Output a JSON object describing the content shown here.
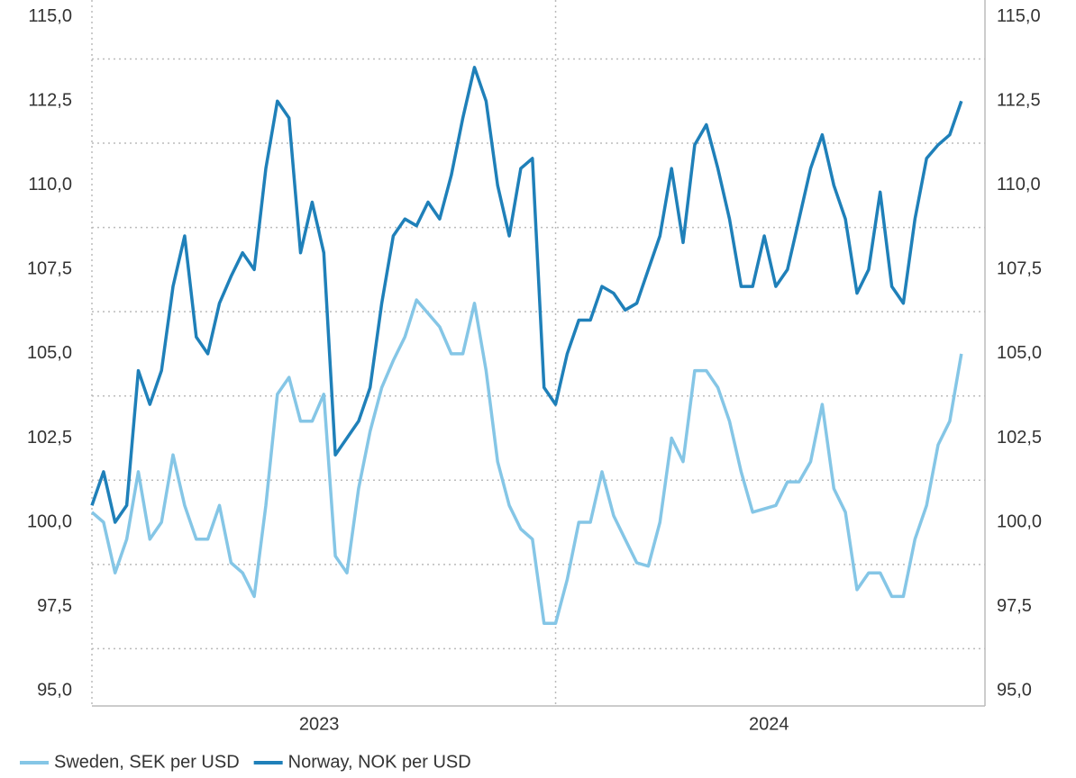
{
  "chart_data": {
    "type": "line",
    "xlim": [
      2023,
      2024.926
    ],
    "xticks": [
      2023,
      2024
    ],
    "xlabels": [
      {
        "value": 2023.49,
        "label": "2023"
      },
      {
        "value": 2024.46,
        "label": "2024"
      }
    ],
    "ylim": [
      94.55,
      115.5
    ],
    "yticks": [
      {
        "value": 95,
        "label": "95,0"
      },
      {
        "value": 97.5,
        "label": "97,5"
      },
      {
        "value": 100,
        "label": "100,0"
      },
      {
        "value": 102.5,
        "label": "102,5"
      },
      {
        "value": 105,
        "label": "105,0"
      },
      {
        "value": 107.5,
        "label": "107,5"
      },
      {
        "value": 110,
        "label": "110,0"
      },
      {
        "value": 112.5,
        "label": "112,5"
      },
      {
        "value": 115,
        "label": "115,0"
      }
    ],
    "y2lim": [
      94.55,
      115.5
    ],
    "y2ticks": [
      {
        "value": 95,
        "label": "95,0"
      },
      {
        "value": 97.5,
        "label": "97,5"
      },
      {
        "value": 100,
        "label": "100,0"
      },
      {
        "value": 102.5,
        "label": "102,5"
      },
      {
        "value": 105,
        "label": "105,0"
      },
      {
        "value": 107.5,
        "label": "107,5"
      },
      {
        "value": 110,
        "label": "110,0"
      },
      {
        "value": 112.5,
        "label": "112,5"
      },
      {
        "value": 115,
        "label": "115,0"
      }
    ],
    "grid": true,
    "legend": "bottom",
    "x": [
      2023,
      2023.025,
      2023.05,
      2023.075,
      2023.1,
      2023.125,
      2023.15,
      2023.175,
      2023.2,
      2023.225,
      2023.25,
      2023.275,
      2023.3,
      2023.325,
      2023.35,
      2023.375,
      2023.4,
      2023.425,
      2023.45,
      2023.475,
      2023.5,
      2023.525,
      2023.55,
      2023.575,
      2023.6,
      2023.625,
      2023.65,
      2023.675,
      2023.7,
      2023.725,
      2023.75,
      2023.775,
      2023.8,
      2023.825,
      2023.85,
      2023.875,
      2023.9,
      2023.925,
      2023.95,
      2023.975,
      2024,
      2024.025,
      2024.05,
      2024.075,
      2024.1,
      2024.125,
      2024.15,
      2024.175,
      2024.2,
      2024.225,
      2024.25,
      2024.275,
      2024.3,
      2024.325,
      2024.35,
      2024.375,
      2024.4,
      2024.425,
      2024.45,
      2024.475,
      2024.5,
      2024.525,
      2024.55,
      2024.575,
      2024.6,
      2024.625,
      2024.65,
      2024.675,
      2024.7,
      2024.725,
      2024.75,
      2024.775,
      2024.8,
      2024.825,
      2024.85,
      2024.875
    ],
    "series": [
      {
        "name": "Sweden, SEK per USD",
        "color": "#85c6e6",
        "values": [
          100.3,
          100,
          98.5,
          99.5,
          101.5,
          99.5,
          100,
          102,
          100.5,
          99.5,
          99.5,
          100.5,
          98.8,
          98.5,
          97.8,
          100.5,
          103.8,
          104.3,
          103,
          103,
          103.8,
          99,
          98.5,
          101,
          102.7,
          104,
          104.8,
          105.5,
          106.6,
          106.2,
          105.8,
          105,
          105,
          106.5,
          104.5,
          101.8,
          100.5,
          99.8,
          99.5,
          97,
          97,
          98.3,
          100,
          100,
          101.5,
          100.2,
          99.5,
          98.8,
          98.7,
          100,
          102.5,
          101.8,
          104.5,
          104.5,
          104,
          103,
          101.5,
          100.3,
          100.4,
          100.5,
          101.2,
          101.2,
          101.8,
          103.5,
          101,
          100.3,
          98,
          98.5,
          98.5,
          97.8,
          97.8,
          99.5,
          100.5,
          102.3,
          103,
          105
        ]
      },
      {
        "name": "Norway, NOK per USD",
        "color": "#1f80b9",
        "values": [
          100.5,
          101.5,
          100,
          100.5,
          104.5,
          103.5,
          104.5,
          107,
          108.5,
          105.5,
          105,
          106.5,
          107.3,
          108,
          107.5,
          110.5,
          112.5,
          112,
          108,
          109.5,
          108,
          102,
          102.5,
          103,
          104,
          106.5,
          108.5,
          109,
          108.8,
          109.5,
          109,
          110.3,
          112,
          113.5,
          112.5,
          110,
          108.5,
          110.5,
          110.8,
          104,
          103.5,
          105,
          106,
          106,
          107,
          106.8,
          106.3,
          106.5,
          107.5,
          108.5,
          110.5,
          108.3,
          111.2,
          111.8,
          110.5,
          109,
          107,
          107,
          108.5,
          107,
          107.5,
          109,
          110.5,
          111.5,
          110,
          109,
          106.8,
          107.5,
          109.8,
          107,
          106.5,
          109,
          110.8,
          111.2,
          111.5,
          112.5
        ]
      }
    ]
  }
}
